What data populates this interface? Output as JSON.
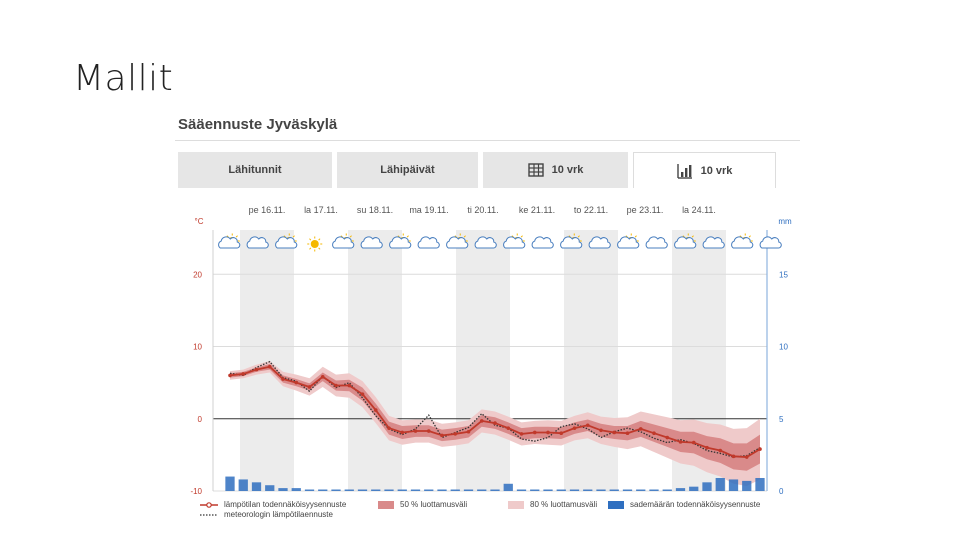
{
  "slide": {
    "title": "Mallit"
  },
  "panel": {
    "title": "Sääennuste Jyväskylä"
  },
  "tabs": [
    {
      "label": "Lähitunnit",
      "icon": "none",
      "active": false
    },
    {
      "label": "Lähipäivät",
      "icon": "none",
      "active": false
    },
    {
      "label": "10 vrk",
      "icon": "table-icon",
      "active": false
    },
    {
      "label": "10 vrk",
      "icon": "bar-chart-icon",
      "active": true
    }
  ],
  "chart_data": {
    "type": "line",
    "days": [
      "pe 16.11.",
      "la 17.11.",
      "su 18.11.",
      "ma 19.11.",
      "ti 20.11.",
      "ke 21.11.",
      "to 22.11.",
      "pe 23.11.",
      "la 24.11."
    ],
    "left_axis": {
      "unit": "°C",
      "ticks": [
        "20",
        "10",
        "0",
        "-10"
      ],
      "ylim": [
        -10,
        30
      ]
    },
    "right_axis": {
      "unit": "mm",
      "ticks": [
        "15",
        "10",
        "5",
        "0"
      ],
      "ylim": [
        0,
        20
      ]
    },
    "weather_icons": [
      "partly-cloudy",
      "cloud",
      "partly-cloudy",
      "sun",
      "partly-cloudy",
      "cloud",
      "partly-cloudy",
      "cloud",
      "partly-cloudy",
      "cloud",
      "partly-cloudy",
      "cloud",
      "partly-cloudy",
      "cloud",
      "partly-cloudy",
      "cloud",
      "partly-cloudy",
      "cloud",
      "partly-cloudy",
      "cloud"
    ],
    "series": [
      {
        "name": "lämpötilan todennäköisyysennuste",
        "color": "#c0392b",
        "values": [
          6,
          6.2,
          6.8,
          7.2,
          5.5,
          5,
          4.4,
          5.8,
          4.6,
          4.6,
          3.4,
          1.2,
          -1.3,
          -1.9,
          -1.7,
          -1.7,
          -2.3,
          -2.1,
          -1.8,
          -0.3,
          -0.6,
          -1.3,
          -2.1,
          -1.9,
          -1.9,
          -2,
          -1.3,
          -0.9,
          -1.6,
          -1.9,
          -2,
          -1.4,
          -2,
          -2.6,
          -3.2,
          -3.3,
          -4,
          -4.4,
          -5.2,
          -5.3,
          -4.2
        ]
      },
      {
        "name": "meteorologin lämpötilaennuste",
        "color": "#333333",
        "values": [
          6.3,
          6,
          7.1,
          7.9,
          5.7,
          5.2,
          3.8,
          5.9,
          4.3,
          5,
          2.9,
          0.4,
          -1.4,
          -2.2,
          -1.4,
          0.5,
          -2.6,
          -1.9,
          -1.2,
          0.7,
          -0.9,
          -1.3,
          -2.8,
          -3.1,
          -2.6,
          -1.1,
          -0.7,
          -1.4,
          -2.6,
          -1.8,
          -1.3,
          -1.8,
          -2.7,
          -3.3,
          -2.9,
          -3.4,
          -4.4,
          -4.8,
          -5.3,
          -5.1,
          -4
        ]
      }
    ],
    "band_50": {
      "name": "50 % luottamusväli",
      "color": "#d98a8a",
      "half_width": [
        0.3,
        0.3,
        0.3,
        0.4,
        0.5,
        0.5,
        0.5,
        0.6,
        0.7,
        0.8,
        0.9,
        0.9,
        0.9,
        0.9,
        0.8,
        0.8,
        0.8,
        0.8,
        0.8,
        0.8,
        0.8,
        0.8,
        0.8,
        0.8,
        0.8,
        0.8,
        0.8,
        0.8,
        0.9,
        0.9,
        1.0,
        1.1,
        1.2,
        1.3,
        1.4,
        1.5,
        1.6,
        1.7,
        1.8,
        1.9,
        2.0
      ]
    },
    "band_80": {
      "name": "80 % luottamusväli",
      "color": "#efcaca",
      "half_width": [
        0.6,
        0.6,
        0.7,
        0.8,
        1.0,
        1.1,
        1.2,
        1.4,
        1.5,
        1.7,
        1.8,
        1.8,
        1.7,
        1.7,
        1.6,
        1.6,
        1.6,
        1.6,
        1.6,
        1.6,
        1.6,
        1.6,
        1.6,
        1.6,
        1.7,
        1.7,
        1.7,
        1.8,
        1.9,
        2.0,
        2.2,
        2.4,
        2.6,
        2.8,
        3.0,
        3.2,
        3.4,
        3.6,
        3.8,
        4.0,
        4.2
      ]
    },
    "precipitation": {
      "name": "sademäärän todennäköisyysennuste",
      "color": "#2f6fc0",
      "values": [
        1.0,
        0.8,
        0.6,
        0.4,
        0.2,
        0.2,
        0.1,
        0.1,
        0.1,
        0.1,
        0.1,
        0.1,
        0.1,
        0.1,
        0.1,
        0.1,
        0.1,
        0.1,
        0.1,
        0.1,
        0.1,
        0.5,
        0.1,
        0.1,
        0.1,
        0.1,
        0.1,
        0.1,
        0.1,
        0.1,
        0.1,
        0.1,
        0.1,
        0.1,
        0.2,
        0.3,
        0.6,
        0.9,
        0.8,
        0.7,
        0.9
      ]
    },
    "legend": {
      "temp_prob": "lämpötilan todennäköisyysennuste",
      "meteorologist": "meteorologin lämpötilaennuste",
      "band50": "50 % luottamusväli",
      "band80": "80 % luottamusväli",
      "precip": "sademäärän todennäköisyysennuste"
    }
  }
}
